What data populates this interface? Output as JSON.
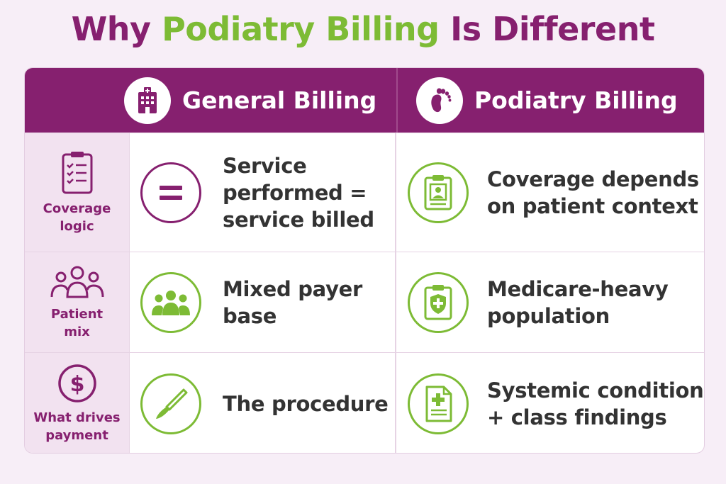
{
  "title": {
    "part1": "Why ",
    "part2": "Podiatry Billing",
    "part3": " Is Different"
  },
  "header": {
    "general": {
      "label": "General Billing",
      "icon": "hospital-icon"
    },
    "podiatry": {
      "label": "Podiatry Billing",
      "icon": "foot-icon"
    }
  },
  "rows": [
    {
      "category": "Coverage\nlogic",
      "category_icon": "clipboard-checklist-icon",
      "general": {
        "text": "Service\nperformed =\nservice billed",
        "icon": "equals-icon"
      },
      "podiatry": {
        "text": "Coverage depends\non patient context",
        "icon": "patient-chart-icon"
      }
    },
    {
      "category": "Patient\nmix",
      "category_icon": "people-group-icon",
      "general": {
        "text": "Mixed payer\nbase",
        "icon": "group-icon"
      },
      "podiatry": {
        "text": "Medicare-heavy\npopulation",
        "icon": "shield-clipboard-icon"
      }
    },
    {
      "category": "What drives\npayment",
      "category_icon": "dollar-icon",
      "general": {
        "text": "The procedure",
        "icon": "scalpel-icon"
      },
      "podiatry": {
        "text": "Systemic condition\n+ class findings",
        "icon": "medical-document-icon"
      }
    }
  ],
  "colors": {
    "purple": "#86206f",
    "green": "#7dbb35",
    "background": "#f7eef7",
    "category_bg": "#f2e2f0"
  }
}
